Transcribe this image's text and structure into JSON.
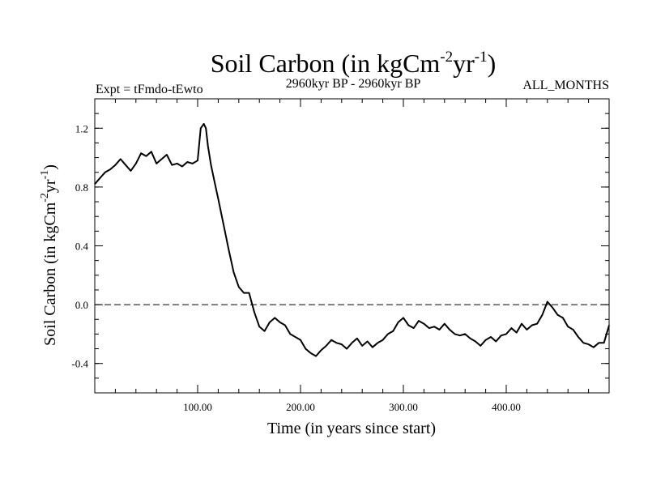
{
  "chart_data": {
    "type": "line",
    "title": {
      "base": "Soil Carbon (in kgCm",
      "exp1": "-2",
      "mid": "yr",
      "exp2": "-1",
      "close": ")"
    },
    "subtitle_left": "Expt = tFmdo-tEwto",
    "subtitle_center": "2960kyr BP - 2960kyr BP",
    "subtitle_right": "ALL_MONTHS",
    "xlabel": "Time (in years since start)",
    "ylabel": {
      "base": "Soil Carbon (in kgCm",
      "exp1": "-2",
      "mid": "yr",
      "exp2": "-1",
      "close": ")"
    },
    "xlim": [
      0,
      500
    ],
    "ylim": [
      -0.6,
      1.4
    ],
    "xticks": [
      100,
      200,
      300,
      400
    ],
    "xtick_labels": [
      "100.00",
      "200.00",
      "300.00",
      "400.00"
    ],
    "yticks": [
      -0.4,
      0.0,
      0.4,
      0.8,
      1.2
    ],
    "ytick_labels": [
      "-0.4",
      "0.0",
      "0.4",
      "0.8",
      "1.2"
    ],
    "reference_line": {
      "y": 0.0,
      "style": "dashed"
    },
    "series": [
      {
        "name": "Soil Carbon",
        "x": [
          0,
          5,
          10,
          15,
          20,
          25,
          30,
          35,
          40,
          45,
          50,
          55,
          60,
          65,
          70,
          75,
          80,
          85,
          90,
          95,
          100,
          103,
          106,
          108,
          110,
          113,
          116,
          120,
          125,
          130,
          135,
          140,
          145,
          150,
          155,
          160,
          165,
          170,
          175,
          180,
          185,
          190,
          195,
          200,
          205,
          210,
          215,
          220,
          225,
          230,
          235,
          240,
          245,
          250,
          255,
          260,
          265,
          270,
          275,
          280,
          285,
          290,
          295,
          300,
          305,
          310,
          315,
          320,
          325,
          330,
          335,
          340,
          345,
          350,
          355,
          360,
          365,
          370,
          375,
          380,
          385,
          390,
          395,
          400,
          405,
          410,
          415,
          420,
          425,
          430,
          435,
          440,
          445,
          450,
          455,
          460,
          465,
          470,
          475,
          480,
          485,
          490,
          495,
          500
        ],
        "y": [
          0.82,
          0.86,
          0.9,
          0.92,
          0.95,
          0.99,
          0.95,
          0.91,
          0.96,
          1.03,
          1.01,
          1.04,
          0.96,
          0.99,
          1.02,
          0.95,
          0.96,
          0.94,
          0.97,
          0.96,
          0.98,
          1.2,
          1.23,
          1.2,
          1.08,
          0.95,
          0.85,
          0.72,
          0.55,
          0.38,
          0.22,
          0.12,
          0.08,
          0.08,
          -0.05,
          -0.15,
          -0.18,
          -0.12,
          -0.09,
          -0.12,
          -0.14,
          -0.2,
          -0.22,
          -0.24,
          -0.3,
          -0.33,
          -0.35,
          -0.31,
          -0.28,
          -0.24,
          -0.26,
          -0.27,
          -0.3,
          -0.26,
          -0.23,
          -0.28,
          -0.25,
          -0.29,
          -0.26,
          -0.24,
          -0.2,
          -0.18,
          -0.12,
          -0.09,
          -0.14,
          -0.16,
          -0.11,
          -0.13,
          -0.16,
          -0.15,
          -0.17,
          -0.13,
          -0.17,
          -0.2,
          -0.21,
          -0.2,
          -0.23,
          -0.25,
          -0.28,
          -0.24,
          -0.22,
          -0.25,
          -0.21,
          -0.2,
          -0.16,
          -0.19,
          -0.13,
          -0.17,
          -0.14,
          -0.13,
          -0.07,
          0.02,
          -0.02,
          -0.07,
          -0.09,
          -0.15,
          -0.17,
          -0.22,
          -0.26,
          -0.27,
          -0.29,
          -0.26,
          -0.26,
          -0.14
        ]
      }
    ]
  }
}
